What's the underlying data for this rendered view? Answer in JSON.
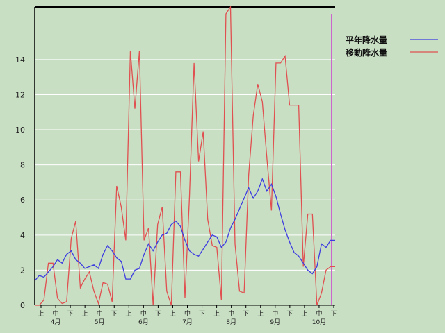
{
  "chart_data": {
    "type": "line",
    "title": "",
    "xlabel": "",
    "ylabel": "",
    "ylim": [
      0,
      17
    ],
    "yticks": [
      0,
      2,
      4,
      6,
      8,
      10,
      12,
      14
    ],
    "grid": true,
    "legend_position": "right",
    "x_period_ticks": [
      "上",
      "中",
      "下",
      "上",
      "中",
      "下",
      "上",
      "中",
      "下",
      "上",
      "中",
      "下",
      "上",
      "中",
      "下",
      "上",
      "中",
      "下",
      "上",
      "中",
      "下"
    ],
    "month_labels": [
      "4月",
      "5月",
      "6月",
      "7月",
      "8月",
      "9月",
      "10月"
    ],
    "series": [
      {
        "name": "平年降水量",
        "color": "#3c3ce0",
        "values": [
          1.4,
          1.7,
          1.6,
          1.9,
          2.2,
          2.6,
          2.4,
          2.9,
          3.1,
          2.6,
          2.4,
          2.1,
          2.2,
          2.3,
          2.1,
          2.9,
          3.4,
          3.1,
          2.7,
          2.5,
          1.5,
          1.5,
          2.0,
          2.1,
          2.9,
          3.5,
          3.1,
          3.6,
          4.0,
          4.1,
          4.6,
          4.8,
          4.5,
          3.7,
          3.1,
          2.9,
          2.8,
          3.2,
          3.6,
          4.0,
          3.9,
          3.3,
          3.6,
          4.4,
          4.9,
          5.5,
          6.1,
          6.7,
          6.1,
          6.5,
          7.2,
          6.5,
          6.9,
          6.2,
          5.2,
          4.3,
          3.6,
          3.0,
          2.8,
          2.4,
          2.0,
          1.8,
          2.2,
          3.5,
          3.3,
          3.7,
          3.7
        ]
      },
      {
        "name": "移動降水量",
        "color": "#e05050",
        "values": [
          0.0,
          0.0,
          0.3,
          2.4,
          2.4,
          0.4,
          0.1,
          0.2,
          3.8,
          4.8,
          1.0,
          1.5,
          1.9,
          0.8,
          0.1,
          1.3,
          1.2,
          0.2,
          6.8,
          5.6,
          3.7,
          14.5,
          11.2,
          14.5,
          3.7,
          4.4,
          0.0,
          4.6,
          5.6,
          0.8,
          0.0,
          7.6,
          7.6,
          0.4,
          6.2,
          13.8,
          8.2,
          9.9,
          4.9,
          3.4,
          3.3,
          0.3,
          16.6,
          17.0,
          3.5,
          0.8,
          0.7,
          7.4,
          10.8,
          12.6,
          11.6,
          8.4,
          5.4,
          13.8,
          13.8,
          14.2,
          11.4,
          11.4,
          11.4,
          2.2,
          5.2,
          5.2,
          0.0,
          0.7,
          2.0,
          2.2,
          2.2
        ]
      }
    ]
  }
}
